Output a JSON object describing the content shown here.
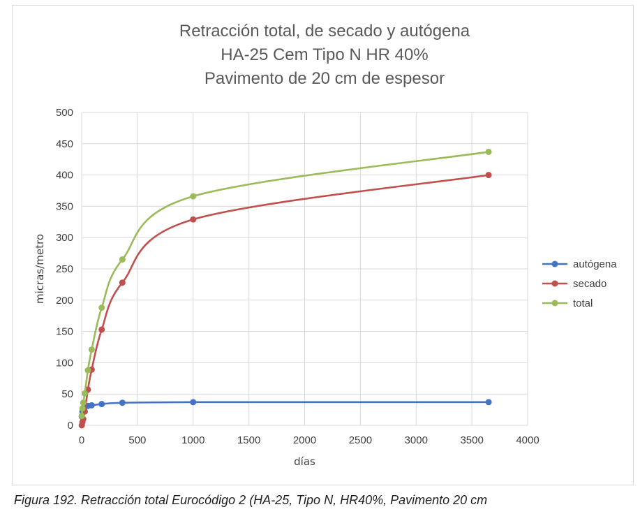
{
  "chart_data": {
    "type": "line",
    "title": [
      "Retracción total, de secado y autógena",
      "HA-25 Cem Tipo N HR 40%",
      "Pavimento de 20 cm de espesor"
    ],
    "xlabel": "días",
    "ylabel": "micras/metro",
    "xlim": [
      0,
      4000
    ],
    "ylim": [
      0,
      500
    ],
    "xticks": [
      0,
      500,
      1000,
      1500,
      2000,
      2500,
      3000,
      3500,
      4000
    ],
    "yticks": [
      0,
      50,
      100,
      150,
      200,
      250,
      300,
      350,
      400,
      450,
      500
    ],
    "grid": true,
    "legend_position": "right",
    "series": [
      {
        "name": "autógena",
        "color": "#4472c4",
        "x": [
          1,
          7,
          14,
          28,
          56,
          90,
          180,
          365,
          1000,
          3650
        ],
        "y": [
          14,
          22,
          26,
          29,
          31,
          32,
          34,
          36,
          37,
          37
        ]
      },
      {
        "name": "secado",
        "color": "#c0504d",
        "x": [
          1,
          7,
          14,
          28,
          56,
          90,
          180,
          365,
          1000,
          3650
        ],
        "y": [
          0,
          5,
          10,
          22,
          57,
          89,
          153,
          228,
          329,
          400
        ]
      },
      {
        "name": "total",
        "color": "#9bbb59",
        "x": [
          1,
          7,
          14,
          28,
          56,
          90,
          180,
          365,
          1000,
          3650
        ],
        "y": [
          15,
          27,
          36,
          51,
          88,
          121,
          188,
          265,
          366,
          437
        ]
      }
    ]
  },
  "caption": "Figura 192. Retracción total Eurocódigo 2 (HA-25, Tipo N, HR40%, Pavimento 20 cm"
}
